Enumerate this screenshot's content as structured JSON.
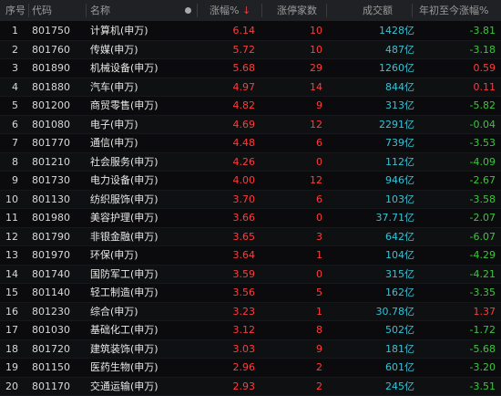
{
  "header": {
    "index": "序号",
    "code": "代码",
    "name": "名称",
    "change": "涨幅%",
    "limit_up_count": "涨停家数",
    "volume": "成交额",
    "ytd": "年初至今涨幅%"
  },
  "colors": {
    "up": "#ff3c3c",
    "down": "#3fc43f",
    "volume": "#35c3d6",
    "header_bg": "#202124",
    "bg": "#0b0b0d"
  },
  "rows": [
    {
      "index": "1",
      "code": "801750",
      "name": "计算机(申万)",
      "change": "6.14",
      "limit": "10",
      "volume": "1428亿",
      "ytd": "-3.81",
      "ytd_sign": "neg"
    },
    {
      "index": "2",
      "code": "801760",
      "name": "传媒(申万)",
      "change": "5.72",
      "limit": "10",
      "volume": "487亿",
      "ytd": "-3.18",
      "ytd_sign": "neg"
    },
    {
      "index": "3",
      "code": "801890",
      "name": "机械设备(申万)",
      "change": "5.68",
      "limit": "29",
      "volume": "1260亿",
      "ytd": "0.59",
      "ytd_sign": "pos"
    },
    {
      "index": "4",
      "code": "801880",
      "name": "汽车(申万)",
      "change": "4.97",
      "limit": "14",
      "volume": "844亿",
      "ytd": "0.11",
      "ytd_sign": "pos"
    },
    {
      "index": "5",
      "code": "801200",
      "name": "商贸零售(申万)",
      "change": "4.82",
      "limit": "9",
      "volume": "313亿",
      "ytd": "-5.82",
      "ytd_sign": "neg"
    },
    {
      "index": "6",
      "code": "801080",
      "name": "电子(申万)",
      "change": "4.69",
      "limit": "12",
      "volume": "2291亿",
      "ytd": "-0.04",
      "ytd_sign": "neg"
    },
    {
      "index": "7",
      "code": "801770",
      "name": "通信(申万)",
      "change": "4.48",
      "limit": "6",
      "volume": "739亿",
      "ytd": "-3.53",
      "ytd_sign": "neg"
    },
    {
      "index": "8",
      "code": "801210",
      "name": "社会服务(申万)",
      "change": "4.26",
      "limit": "0",
      "volume": "112亿",
      "ytd": "-4.09",
      "ytd_sign": "neg"
    },
    {
      "index": "9",
      "code": "801730",
      "name": "电力设备(申万)",
      "change": "4.00",
      "limit": "12",
      "volume": "946亿",
      "ytd": "-2.67",
      "ytd_sign": "neg"
    },
    {
      "index": "10",
      "code": "801130",
      "name": "纺织服饰(申万)",
      "change": "3.70",
      "limit": "6",
      "volume": "103亿",
      "ytd": "-3.58",
      "ytd_sign": "neg"
    },
    {
      "index": "11",
      "code": "801980",
      "name": "美容护理(申万)",
      "change": "3.66",
      "limit": "0",
      "volume": "37.71亿",
      "ytd": "-2.07",
      "ytd_sign": "neg"
    },
    {
      "index": "12",
      "code": "801790",
      "name": "非银金融(申万)",
      "change": "3.65",
      "limit": "3",
      "volume": "642亿",
      "ytd": "-6.07",
      "ytd_sign": "neg"
    },
    {
      "index": "13",
      "code": "801970",
      "name": "环保(申万)",
      "change": "3.64",
      "limit": "1",
      "volume": "104亿",
      "ytd": "-4.29",
      "ytd_sign": "neg"
    },
    {
      "index": "14",
      "code": "801740",
      "name": "国防军工(申万)",
      "change": "3.59",
      "limit": "0",
      "volume": "315亿",
      "ytd": "-4.21",
      "ytd_sign": "neg"
    },
    {
      "index": "15",
      "code": "801140",
      "name": "轻工制造(申万)",
      "change": "3.56",
      "limit": "5",
      "volume": "162亿",
      "ytd": "-3.35",
      "ytd_sign": "neg"
    },
    {
      "index": "16",
      "code": "801230",
      "name": "综合(申万)",
      "change": "3.23",
      "limit": "1",
      "volume": "30.78亿",
      "ytd": "1.37",
      "ytd_sign": "pos"
    },
    {
      "index": "17",
      "code": "801030",
      "name": "基础化工(申万)",
      "change": "3.12",
      "limit": "8",
      "volume": "502亿",
      "ytd": "-1.72",
      "ytd_sign": "neg"
    },
    {
      "index": "18",
      "code": "801720",
      "name": "建筑装饰(申万)",
      "change": "3.03",
      "limit": "9",
      "volume": "181亿",
      "ytd": "-5.68",
      "ytd_sign": "neg"
    },
    {
      "index": "19",
      "code": "801150",
      "name": "医药生物(申万)",
      "change": "2.96",
      "limit": "2",
      "volume": "601亿",
      "ytd": "-3.20",
      "ytd_sign": "neg"
    },
    {
      "index": "20",
      "code": "801170",
      "name": "交通运输(申万)",
      "change": "2.93",
      "limit": "2",
      "volume": "245亿",
      "ytd": "-3.51",
      "ytd_sign": "neg"
    }
  ]
}
